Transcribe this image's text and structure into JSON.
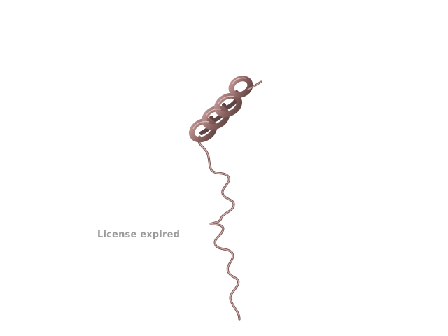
{
  "viewer": {
    "watermark_text": "License expired"
  },
  "molecule": {
    "representation": "cartoon",
    "secondary_structure": [
      "alpha-helix",
      "coil"
    ],
    "ribbon_color": "#a97f7d",
    "ribbon_shadow_color": "#6e4e4c",
    "ribbon_highlight_color": "#d6b3b0",
    "background_color": "#ffffff"
  }
}
